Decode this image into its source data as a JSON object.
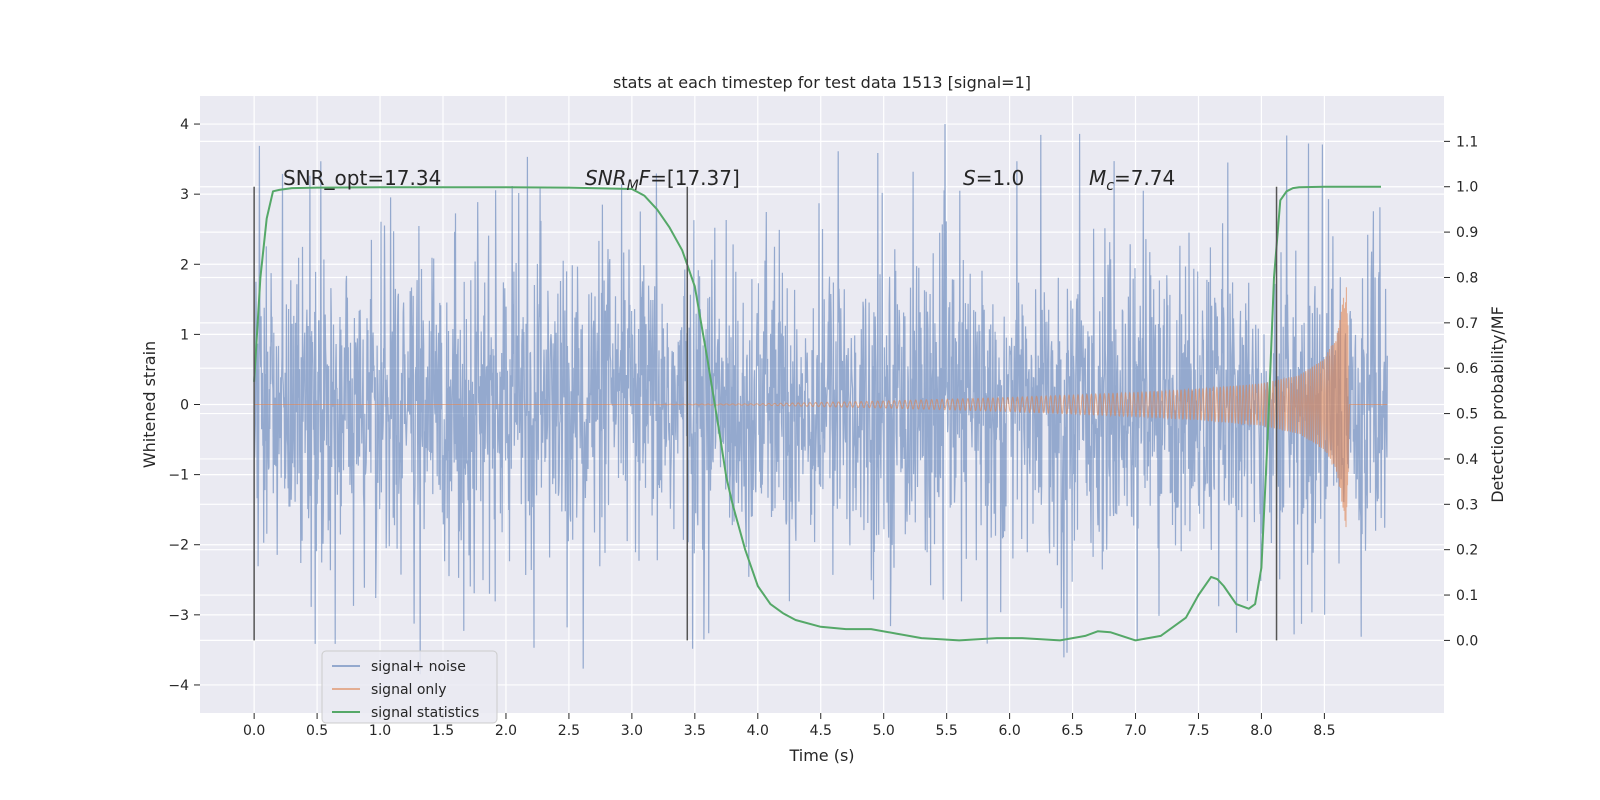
{
  "chart_data": {
    "type": "line",
    "title": "stats at each timestep for test data 1513 [signal=1]",
    "xlabel": "Time (s)",
    "ylabel": "Whitened strain",
    "y2label": "Detection probability/MF",
    "xlim": [
      -0.43,
      9.45
    ],
    "ylim": [
      -4.4,
      4.4
    ],
    "y2lim": [
      -0.16,
      1.2
    ],
    "x_ticks": [
      "0.0",
      "0.5",
      "1.0",
      "1.5",
      "2.0",
      "2.5",
      "3.0",
      "3.5",
      "4.0",
      "4.5",
      "5.0",
      "5.5",
      "6.0",
      "6.5",
      "7.0",
      "7.5",
      "8.0",
      "8.5"
    ],
    "y_ticks": [
      "4",
      "3",
      "2",
      "1",
      "0",
      "−1",
      "−2",
      "−3",
      "−4"
    ],
    "y2_ticks": [
      "1.1",
      "1.0",
      "0.9",
      "0.8",
      "0.7",
      "0.6",
      "0.5",
      "0.4",
      "0.3",
      "0.2",
      "0.1",
      "0.0"
    ],
    "grid": true,
    "legend_position": "lower-left",
    "series": [
      {
        "name": "signal+ noise",
        "color": "#4c72b0",
        "time_range": [
          0.0,
          9.0
        ],
        "typical_range": [
          -1.3,
          1.3
        ],
        "peak_max": 4.0,
        "peak_min": -3.9
      },
      {
        "name": "signal only",
        "color": "#dd8452",
        "time_range": [
          0.0,
          9.0
        ],
        "envelope_t": [
          0.0,
          3.0,
          4.0,
          5.0,
          6.0,
          7.0,
          7.5,
          8.0,
          8.3,
          8.5,
          8.6,
          8.65,
          8.68,
          8.7,
          9.0
        ],
        "envelope_amp": [
          0.0,
          0.0,
          0.01,
          0.05,
          0.1,
          0.17,
          0.22,
          0.3,
          0.42,
          0.65,
          1.0,
          1.5,
          1.85,
          0.0,
          0.0
        ],
        "merger_time": 8.68
      },
      {
        "name": "signal statistics",
        "color": "#55a868",
        "x": [
          0.0,
          0.05,
          0.1,
          0.15,
          0.2,
          0.3,
          0.5,
          1.0,
          1.5,
          2.0,
          2.5,
          3.0,
          3.1,
          3.2,
          3.3,
          3.4,
          3.5,
          3.6,
          3.7,
          3.75,
          3.8,
          3.85,
          3.9,
          3.95,
          4.0,
          4.1,
          4.2,
          4.3,
          4.5,
          4.7,
          4.9,
          5.1,
          5.3,
          5.6,
          5.9,
          6.1,
          6.4,
          6.6,
          6.7,
          6.8,
          7.0,
          7.2,
          7.4,
          7.5,
          7.6,
          7.65,
          7.7,
          7.8,
          7.9,
          7.95,
          8.0,
          8.05,
          8.1,
          8.15,
          8.2,
          8.25,
          8.3,
          8.5,
          8.8,
          8.95
        ],
        "values": [
          0.57,
          0.8,
          0.93,
          0.99,
          0.993,
          0.997,
          0.998,
          0.999,
          0.999,
          0.999,
          0.998,
          0.995,
          0.98,
          0.95,
          0.91,
          0.86,
          0.78,
          0.62,
          0.45,
          0.36,
          0.3,
          0.25,
          0.2,
          0.16,
          0.12,
          0.08,
          0.06,
          0.045,
          0.03,
          0.025,
          0.025,
          0.015,
          0.005,
          0.0,
          0.005,
          0.005,
          0.0,
          0.01,
          0.02,
          0.018,
          0.0,
          0.01,
          0.05,
          0.1,
          0.14,
          0.135,
          0.12,
          0.08,
          0.07,
          0.08,
          0.16,
          0.45,
          0.8,
          0.97,
          0.99,
          0.997,
          0.999,
          1.0,
          1.0,
          1.0
        ]
      }
    ],
    "vlines": [
      0.0,
      3.44,
      8.12
    ],
    "annotations": {
      "snr_opt": "SNR_opt=17.34",
      "snr_mf_main": "SNR",
      "snr_mf_sub": "M",
      "snr_mf_tail": "F=[17.37]",
      "s_main": "S",
      "s_tail": "=1.0",
      "mc_main": "M",
      "mc_sub": "c",
      "mc_tail": "=7.74"
    }
  }
}
